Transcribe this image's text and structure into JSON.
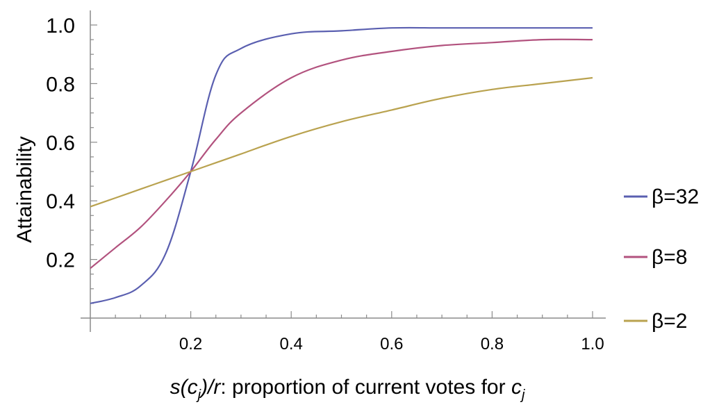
{
  "chart_data": {
    "type": "line",
    "xlabel": {
      "italic_part": "s(c",
      "sub": "j",
      "italic_part2": ")/r",
      "rest": ": proportion of current votes for ",
      "italic_tail": "c",
      "sub_tail": "j"
    },
    "ylabel": "Attainability",
    "xlim": [
      0,
      1.0
    ],
    "ylim": [
      0,
      1.0
    ],
    "x_ticks": [
      "0.2",
      "0.4",
      "0.6",
      "0.8",
      "1.0"
    ],
    "y_ticks": [
      "0.2",
      "0.4",
      "0.6",
      "0.8",
      "1.0"
    ],
    "legend_position": "right",
    "series": [
      {
        "name": "β=32",
        "beta": 32,
        "color": "#5a5fb0"
      },
      {
        "name": "β=8",
        "beta": 8,
        "color": "#b2527e"
      },
      {
        "name": "β=2",
        "beta": 2,
        "color": "#b9a24f"
      }
    ],
    "x": [
      0.0,
      0.05,
      0.1,
      0.15,
      0.2,
      0.25,
      0.3,
      0.4,
      0.5,
      0.6,
      0.7,
      0.8,
      0.9,
      1.0
    ],
    "series_values": {
      "β=32": [
        0.05,
        0.07,
        0.11,
        0.22,
        0.5,
        0.83,
        0.92,
        0.97,
        0.98,
        0.99,
        0.99,
        0.99,
        0.99,
        0.99
      ],
      "β=8": [
        0.17,
        0.24,
        0.31,
        0.4,
        0.5,
        0.61,
        0.7,
        0.82,
        0.88,
        0.91,
        0.93,
        0.94,
        0.95,
        0.95
      ],
      "β=2": [
        0.38,
        0.41,
        0.44,
        0.47,
        0.5,
        0.53,
        0.56,
        0.62,
        0.67,
        0.71,
        0.75,
        0.78,
        0.8,
        0.82
      ]
    }
  }
}
